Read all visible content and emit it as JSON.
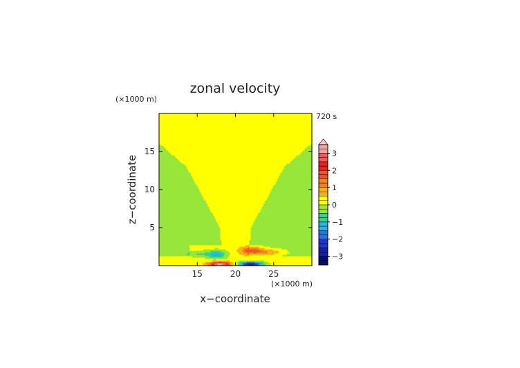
{
  "chart_data": {
    "type": "heatmap",
    "title": "zonal velocity",
    "xlabel": "x−coordinate",
    "ylabel": "z−coordinate",
    "x_unit": "(×1000 m)",
    "y_unit": "(×1000 m)",
    "time_label": "720 s",
    "xlim": [
      10,
      30
    ],
    "ylim": [
      0,
      20
    ],
    "x_ticks": [
      "15",
      "20",
      "25"
    ],
    "y_ticks": [
      "5",
      "10",
      "15"
    ],
    "colorbar": {
      "labels": [
        "3",
        "2",
        "1",
        "0",
        "−1",
        "−2",
        "−3"
      ],
      "levels": [
        -3.5,
        -3.25,
        -3,
        -2.75,
        -2.5,
        -2.25,
        -2,
        -1.75,
        -1.5,
        -1.25,
        -1,
        -0.75,
        -0.5,
        -0.25,
        0,
        0.25,
        0.5,
        0.75,
        1,
        1.25,
        1.5,
        1.75,
        2,
        2.25,
        2.5,
        2.75,
        3,
        3.25,
        3.5
      ],
      "extend": "max"
    },
    "field_description_values": {
      "background": 0.1,
      "features": [
        {
          "x": 18.0,
          "z": 0.2,
          "value": 3.2
        },
        {
          "x": 22.0,
          "z": 0.2,
          "value": -3.2
        },
        {
          "x": 17.5,
          "z": 1.5,
          "value": -1.5
        },
        {
          "x": 22.2,
          "z": 2.0,
          "value": 1.8
        }
      ]
    }
  }
}
